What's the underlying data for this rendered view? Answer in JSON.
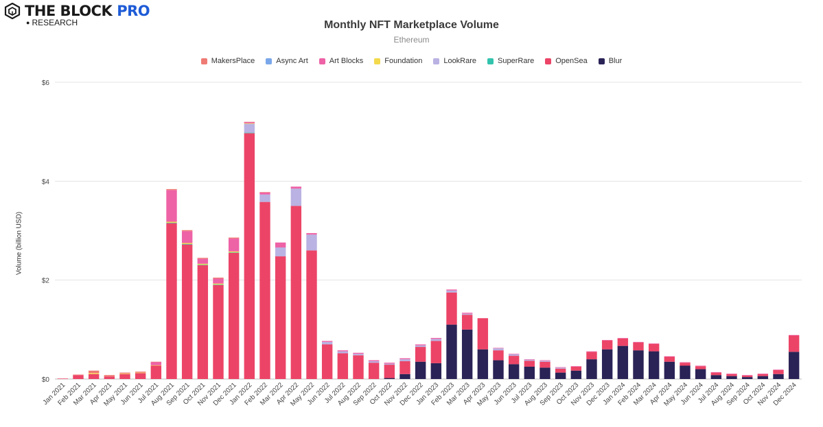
{
  "brand": {
    "name": "THE BLOCK",
    "pro": "PRO",
    "sub": "RESEARCH"
  },
  "chart_data": {
    "type": "bar",
    "stacked": true,
    "title": "Monthly NFT Marketplace Volume",
    "subtitle": "Ethereum",
    "ylabel": "Volume (billion USD)",
    "xlabel": "",
    "ylim": [
      0,
      6
    ],
    "yticks": [
      0,
      2,
      4,
      6
    ],
    "ytick_labels": [
      "$0",
      "$2",
      "$4",
      "$6"
    ],
    "grid": true,
    "legend_position": "top",
    "categories": [
      "Jan 2021",
      "Feb 2021",
      "Mar 2021",
      "Apr 2021",
      "May 2021",
      "Jun 2021",
      "Jul 2021",
      "Aug 2021",
      "Sep 2021",
      "Oct 2021",
      "Nov 2021",
      "Dec 2021",
      "Jan 2022",
      "Feb 2022",
      "Mar 2022",
      "Apr 2022",
      "May 2022",
      "Jun 2022",
      "Jul 2022",
      "Aug 2022",
      "Sep 2022",
      "Oct 2022",
      "Nov 2022",
      "Dec 2022",
      "Jan 2023",
      "Feb 2023",
      "Mar 2023",
      "Apr 2023",
      "May 2023",
      "Jun 2023",
      "Jul 2023",
      "Aug 2023",
      "Sep 2023",
      "Oct 2023",
      "Nov 2023",
      "Dec 2023",
      "Jan 2024",
      "Feb 2024",
      "Mar 2024",
      "Apr 2024",
      "May 2024",
      "Jun 2024",
      "Jul 2024",
      "Aug 2024",
      "Sep 2024",
      "Oct 2024",
      "Nov 2024",
      "Dec 2024"
    ],
    "series": [
      {
        "name": "Blur",
        "color": "#2a2356",
        "values": [
          0,
          0,
          0,
          0,
          0,
          0,
          0,
          0,
          0,
          0,
          0,
          0,
          0,
          0,
          0,
          0,
          0,
          0,
          0,
          0,
          0,
          0.02,
          0.1,
          0.35,
          0.32,
          1.1,
          1.0,
          0.6,
          0.38,
          0.3,
          0.25,
          0.23,
          0.13,
          0.17,
          0.4,
          0.6,
          0.67,
          0.58,
          0.56,
          0.35,
          0.27,
          0.2,
          0.08,
          0.06,
          0.04,
          0.06,
          0.1,
          0.55
        ]
      },
      {
        "name": "OpenSea",
        "color": "#ec4467",
        "values": [
          0.01,
          0.08,
          0.1,
          0.05,
          0.1,
          0.12,
          0.27,
          3.15,
          2.72,
          2.3,
          1.9,
          2.55,
          4.97,
          3.58,
          2.48,
          3.5,
          2.6,
          0.7,
          0.52,
          0.48,
          0.33,
          0.27,
          0.26,
          0.3,
          0.45,
          0.65,
          0.3,
          0.63,
          0.2,
          0.17,
          0.12,
          0.12,
          0.08,
          0.08,
          0.15,
          0.18,
          0.15,
          0.16,
          0.15,
          0.1,
          0.06,
          0.06,
          0.05,
          0.04,
          0.03,
          0.04,
          0.08,
          0.33
        ]
      },
      {
        "name": "SuperRare",
        "color": "#33c3ad",
        "values": [
          0,
          0,
          0,
          0,
          0,
          0,
          0,
          0.01,
          0.01,
          0.01,
          0.01,
          0.01,
          0.01,
          0,
          0,
          0,
          0,
          0,
          0,
          0,
          0,
          0,
          0,
          0,
          0,
          0,
          0,
          0,
          0,
          0,
          0,
          0,
          0,
          0,
          0,
          0,
          0,
          0,
          0,
          0,
          0,
          0,
          0,
          0,
          0,
          0,
          0,
          0
        ]
      },
      {
        "name": "LookRare",
        "color": "#b9b2e2",
        "values": [
          0,
          0,
          0,
          0,
          0,
          0,
          0,
          0,
          0,
          0,
          0,
          0,
          0.18,
          0.15,
          0.18,
          0.35,
          0.32,
          0.05,
          0.04,
          0.03,
          0.03,
          0.02,
          0.04,
          0.03,
          0.04,
          0.04,
          0.02,
          0,
          0.04,
          0.03,
          0.02,
          0.02,
          0.02,
          0,
          0,
          0,
          0,
          0,
          0,
          0,
          0,
          0,
          0,
          0,
          0,
          0,
          0,
          0
        ]
      },
      {
        "name": "Foundation",
        "color": "#f3d94c",
        "values": [
          0,
          0,
          0.02,
          0,
          0.01,
          0.01,
          0.01,
          0.02,
          0.02,
          0.02,
          0.02,
          0.02,
          0.01,
          0,
          0,
          0,
          0,
          0,
          0,
          0,
          0,
          0,
          0,
          0,
          0,
          0,
          0,
          0,
          0,
          0,
          0,
          0,
          0,
          0,
          0,
          0,
          0,
          0,
          0,
          0,
          0,
          0,
          0,
          0,
          0,
          0,
          0,
          0
        ]
      },
      {
        "name": "Art Blocks",
        "color": "#ee62a6",
        "values": [
          0,
          0,
          0,
          0,
          0,
          0,
          0.06,
          0.64,
          0.24,
          0.1,
          0.1,
          0.26,
          0.02,
          0.04,
          0.1,
          0.04,
          0.03,
          0.02,
          0.02,
          0.02,
          0.02,
          0.02,
          0.02,
          0.02,
          0.02,
          0.02,
          0.02,
          0,
          0.01,
          0.01,
          0.01,
          0.01,
          0.01,
          0.01,
          0.01,
          0.01,
          0.01,
          0.01,
          0.01,
          0.01,
          0.01,
          0.01,
          0.01,
          0.01,
          0.01,
          0.01,
          0.01,
          0.01
        ]
      },
      {
        "name": "Async Art",
        "color": "#7aa7ea",
        "values": [
          0,
          0,
          0,
          0,
          0,
          0,
          0,
          0,
          0,
          0,
          0,
          0,
          0,
          0,
          0,
          0,
          0,
          0,
          0,
          0,
          0,
          0,
          0,
          0,
          0,
          0,
          0,
          0,
          0,
          0,
          0,
          0,
          0,
          0,
          0,
          0,
          0,
          0,
          0,
          0,
          0,
          0,
          0,
          0,
          0,
          0,
          0,
          0
        ]
      },
      {
        "name": "MakersPlace",
        "color": "#ef7b75",
        "values": [
          0,
          0.01,
          0.05,
          0.03,
          0.02,
          0.02,
          0.01,
          0.02,
          0.02,
          0.02,
          0.02,
          0.02,
          0.01,
          0.01,
          0,
          0,
          0,
          0,
          0,
          0,
          0,
          0,
          0,
          0,
          0,
          0,
          0,
          0,
          0,
          0,
          0,
          0,
          0,
          0,
          0,
          0,
          0,
          0,
          0,
          0,
          0,
          0,
          0,
          0,
          0,
          0,
          0,
          0
        ]
      }
    ],
    "legend": [
      "MakersPlace",
      "Async Art",
      "Art Blocks",
      "Foundation",
      "LookRare",
      "SuperRare",
      "OpenSea",
      "Blur"
    ]
  }
}
